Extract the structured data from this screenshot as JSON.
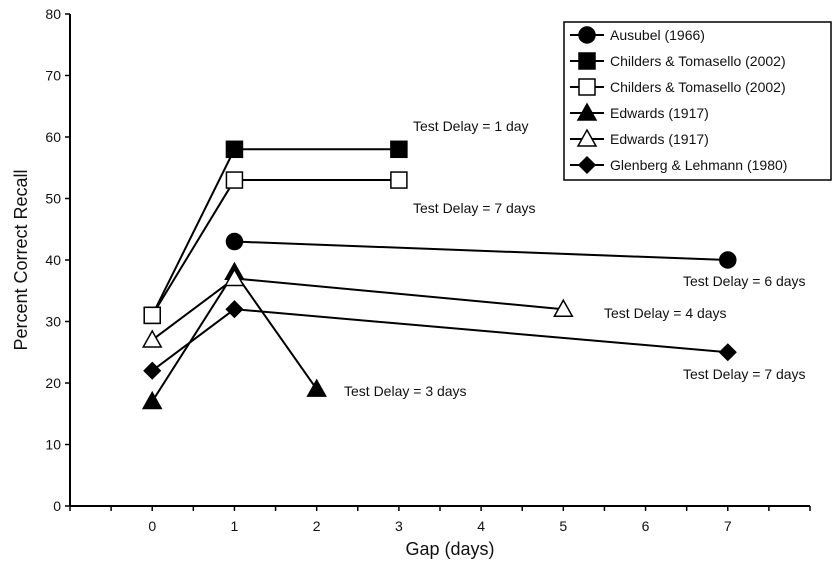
{
  "chart_data": {
    "type": "line",
    "xlabel": "Gap (days)",
    "ylabel": "Percent Correct Recall",
    "xlim": [
      -1,
      8
    ],
    "ylim": [
      0,
      80
    ],
    "x_ticks": [
      0,
      1,
      2,
      3,
      4,
      5,
      6,
      7
    ],
    "y_ticks": [
      0,
      10,
      20,
      30,
      40,
      50,
      60,
      70,
      80
    ],
    "grid": false,
    "legend_position": "top-right",
    "series": [
      {
        "name": "Ausubel (1966)",
        "marker": "circle",
        "filled": true,
        "points": [
          [
            1,
            43
          ],
          [
            7,
            40
          ]
        ]
      },
      {
        "name": "Childers & Tomasello (2002)",
        "marker": "square",
        "filled": true,
        "points": [
          [
            0,
            31
          ],
          [
            1,
            58
          ],
          [
            3,
            58
          ]
        ]
      },
      {
        "name": "Childers & Tomasello (2002)",
        "marker": "square",
        "filled": false,
        "points": [
          [
            0,
            31
          ],
          [
            1,
            53
          ],
          [
            3,
            53
          ]
        ]
      },
      {
        "name": "Edwards (1917)",
        "marker": "triangle",
        "filled": true,
        "points": [
          [
            0,
            17
          ],
          [
            1,
            38
          ],
          [
            2,
            19
          ]
        ]
      },
      {
        "name": "Edwards (1917)",
        "marker": "triangle",
        "filled": false,
        "points": [
          [
            0,
            27
          ],
          [
            1,
            37
          ],
          [
            5,
            32
          ]
        ]
      },
      {
        "name": "Glenberg & Lehmann (1980)",
        "marker": "diamond",
        "filled": true,
        "points": [
          [
            0,
            22
          ],
          [
            1,
            32
          ],
          [
            7,
            25
          ]
        ]
      }
    ],
    "annotations": [
      {
        "text": "Test Delay = 1 day"
      },
      {
        "text": "Test Delay = 7 days"
      },
      {
        "text": "Test Delay = 6 days"
      },
      {
        "text": "Test Delay = 4 days"
      },
      {
        "text": "Test Delay = 7 days"
      },
      {
        "text": "Test Delay = 3 days"
      }
    ]
  }
}
